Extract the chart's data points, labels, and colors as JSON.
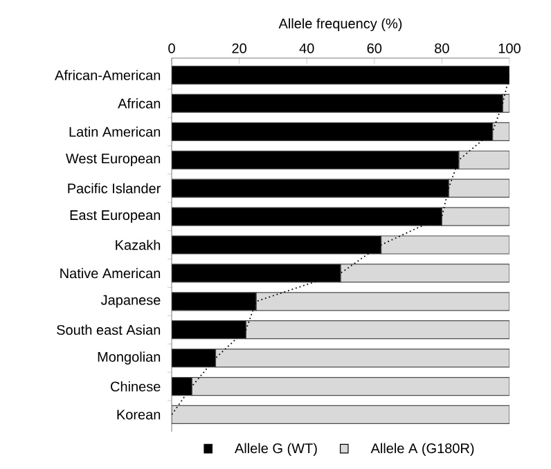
{
  "chart_data": {
    "type": "bar",
    "orientation": "horizontal",
    "stacked": true,
    "xlabel": "Allele frequency (%)",
    "categories": [
      "African-American",
      "African",
      "Latin American",
      "West European",
      "Pacific Islander",
      "East European",
      "Kazakh",
      "Native American",
      "Japanese",
      "South east Asian",
      "Mongolian",
      "Chinese",
      "Korean"
    ],
    "xlim": [
      0,
      100
    ],
    "xticks": [
      0,
      20,
      40,
      60,
      80,
      100
    ],
    "legend": "bottom",
    "series": [
      {
        "name": "Allele G (WT)",
        "color": "#000000",
        "values": [
          100,
          98,
          95,
          85,
          82,
          80,
          62,
          50,
          25,
          22,
          13,
          6,
          0
        ]
      },
      {
        "name": "Allele A (G180R)",
        "color": "#d9d9d9",
        "values": [
          0,
          2,
          5,
          15,
          18,
          20,
          38,
          50,
          75,
          78,
          87,
          94,
          100
        ]
      },
      {
        "type": "line",
        "color": "#000000",
        "line_style": "dotted",
        "values": [
          100,
          98,
          95,
          85,
          82,
          80,
          62,
          50,
          25,
          22,
          13,
          6,
          0
        ]
      }
    ]
  }
}
